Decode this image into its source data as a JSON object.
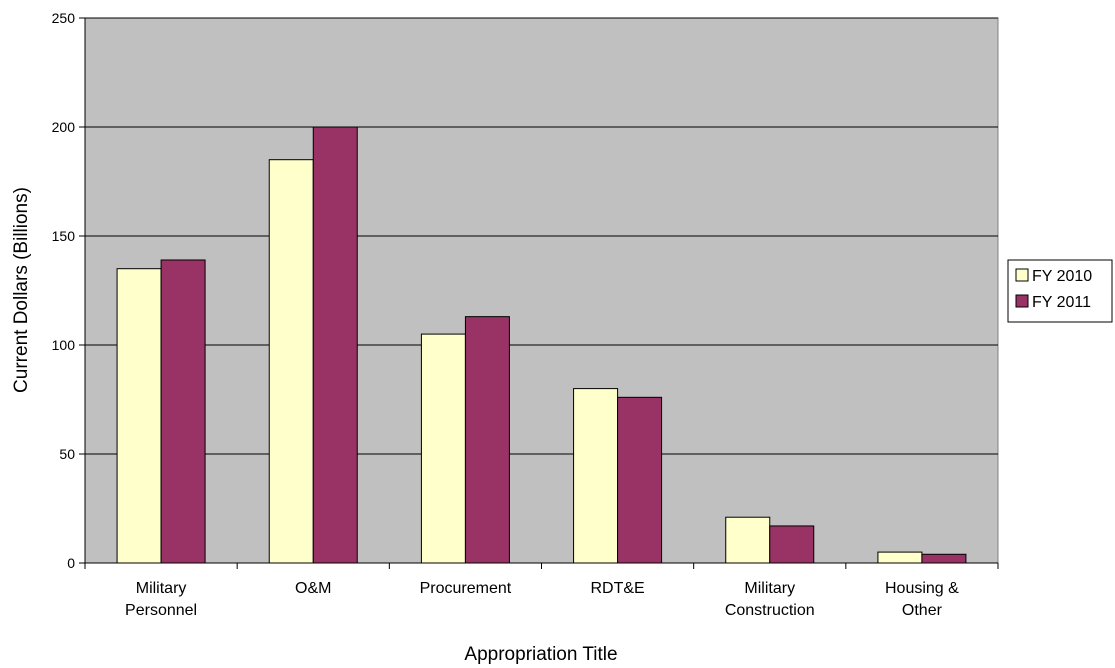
{
  "chart_data": {
    "type": "bar",
    "categories": [
      [
        "Military",
        "Personnel"
      ],
      [
        "O&M"
      ],
      [
        "Procurement"
      ],
      [
        "RDT&E"
      ],
      [
        "Military",
        "Construction"
      ],
      [
        "Housing &",
        "Other"
      ]
    ],
    "series": [
      {
        "name": "FY 2010",
        "color": "#ffffcc",
        "values": [
          135,
          185,
          105,
          80,
          21,
          5
        ]
      },
      {
        "name": "FY 2011",
        "color": "#993366",
        "values": [
          139,
          200,
          113,
          76,
          17,
          4
        ]
      }
    ],
    "xlabel": "Appropriation Title",
    "ylabel": "Current Dollars (Billions)",
    "ylim": [
      0,
      250
    ],
    "yticks": [
      0,
      50,
      100,
      150,
      200,
      250
    ],
    "grid": true,
    "plot_background": "#c0c0c0",
    "legend_position": "right"
  }
}
